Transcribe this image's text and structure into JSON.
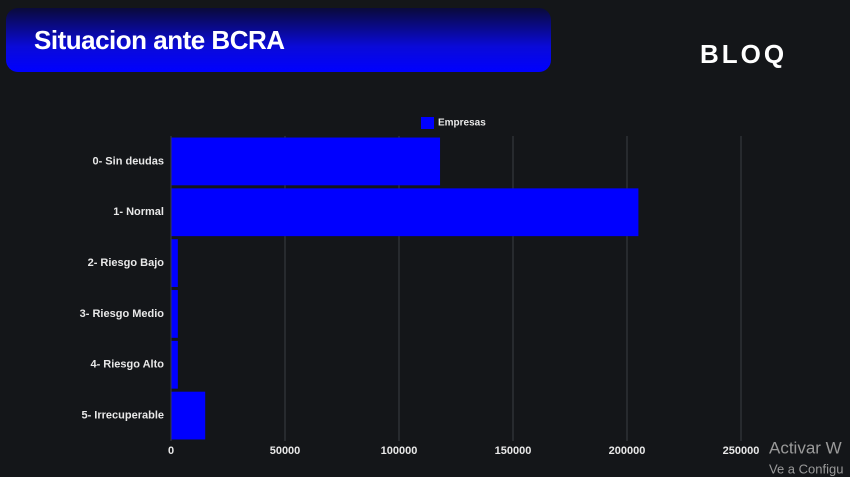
{
  "header": {
    "title": "Situacion ante BCRA",
    "logo": "BLOQ"
  },
  "chart_data": {
    "type": "bar",
    "orientation": "horizontal",
    "categories": [
      "0- Sin deudas",
      "1- Normal",
      "2- Riesgo Bajo",
      "3- Riesgo Medio",
      "4- Riesgo Alto",
      "5- Irrecuperable"
    ],
    "series": [
      {
        "name": "Empresas",
        "color": "#0000ff",
        "values": [
          118000,
          205000,
          3000,
          3000,
          3000,
          15000
        ]
      }
    ],
    "xlim": [
      0,
      250000
    ],
    "xticks": [
      0,
      50000,
      100000,
      150000,
      200000,
      250000
    ],
    "grid": true,
    "legend": "top"
  },
  "watermark": {
    "line1": "Activar W",
    "line2": "Ve a Configu"
  }
}
